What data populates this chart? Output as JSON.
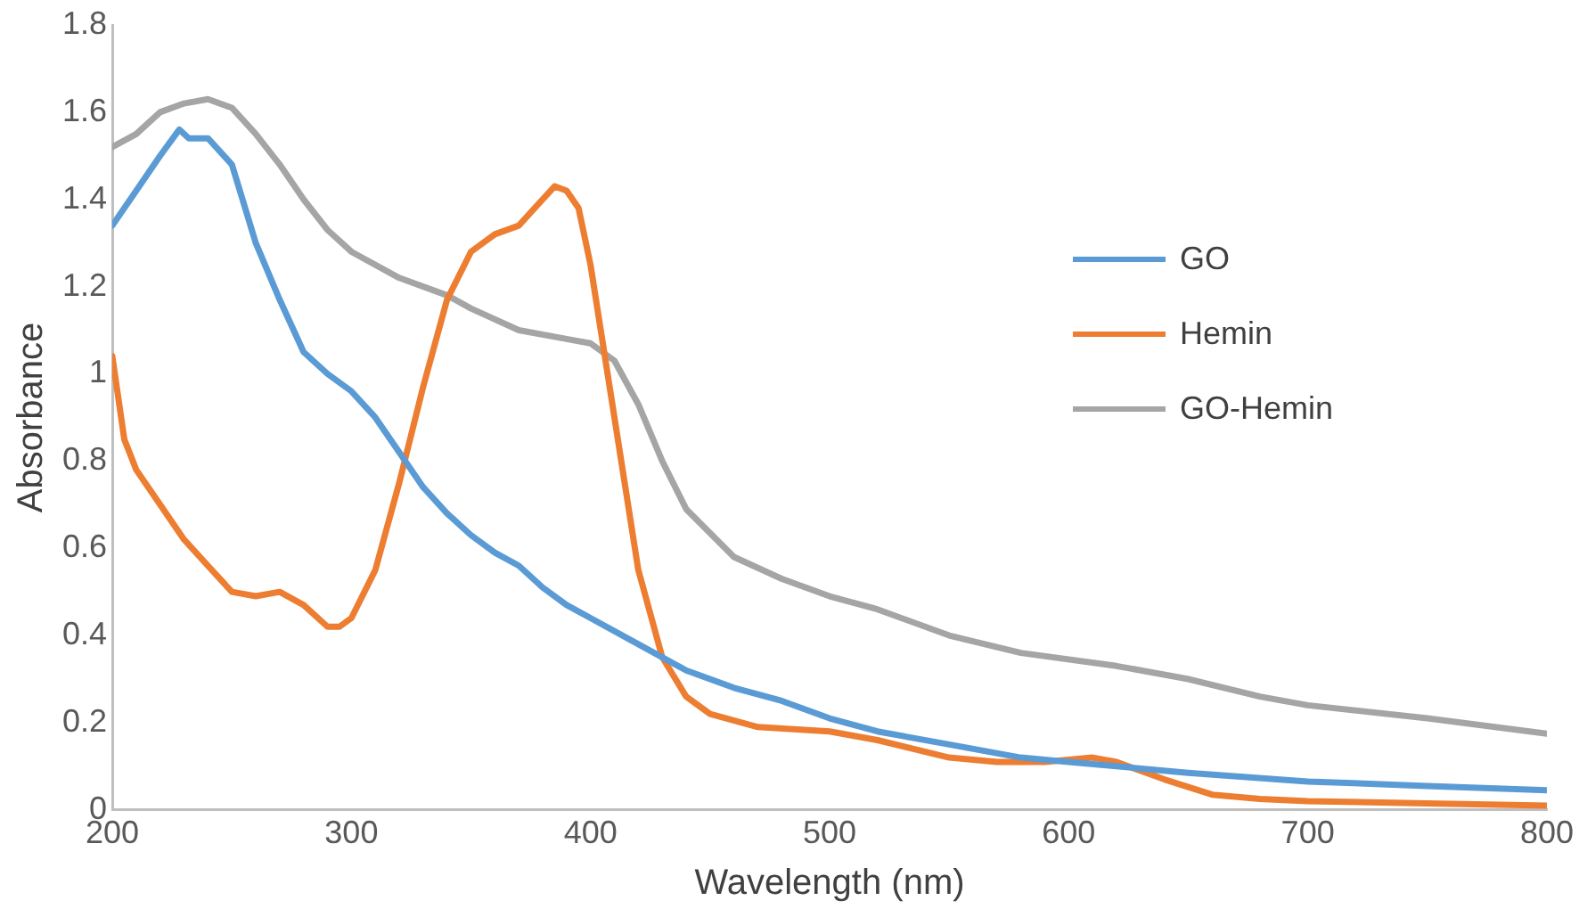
{
  "chart_data": {
    "type": "line",
    "xlabel": "Wavelength (nm)",
    "ylabel": "Absorbance",
    "xlim": [
      200,
      800
    ],
    "xticks": [
      200,
      300,
      400,
      500,
      600,
      700,
      800
    ],
    "ylim": [
      0,
      1.8
    ],
    "yticks": [
      0,
      0.2,
      0.4,
      0.6,
      0.8,
      1,
      1.2,
      1.4,
      1.6,
      1.8
    ],
    "grid": false,
    "legend": "right",
    "marker": "none",
    "line_style": "solid",
    "series": [
      {
        "name": "GO",
        "color": "#5b9bd5",
        "x": [
          200,
          210,
          220,
          228,
          232,
          240,
          250,
          260,
          270,
          280,
          290,
          300,
          310,
          320,
          330,
          340,
          350,
          360,
          370,
          380,
          390,
          400,
          420,
          440,
          460,
          480,
          500,
          520,
          550,
          580,
          600,
          650,
          700,
          750,
          800
        ],
        "values": [
          1.34,
          1.42,
          1.5,
          1.56,
          1.54,
          1.54,
          1.48,
          1.3,
          1.17,
          1.05,
          1.0,
          0.96,
          0.9,
          0.82,
          0.74,
          0.68,
          0.63,
          0.59,
          0.56,
          0.51,
          0.47,
          0.44,
          0.38,
          0.32,
          0.28,
          0.25,
          0.21,
          0.18,
          0.15,
          0.12,
          0.11,
          0.085,
          0.065,
          0.055,
          0.045
        ]
      },
      {
        "name": "Hemin",
        "color": "#ed7d31",
        "x": [
          200,
          205,
          210,
          220,
          230,
          240,
          250,
          260,
          270,
          280,
          290,
          295,
          300,
          310,
          320,
          330,
          340,
          350,
          360,
          370,
          380,
          385,
          390,
          395,
          400,
          410,
          420,
          430,
          440,
          450,
          470,
          500,
          520,
          550,
          570,
          590,
          610,
          620,
          640,
          660,
          680,
          700,
          750,
          800
        ],
        "values": [
          1.04,
          0.85,
          0.78,
          0.7,
          0.62,
          0.56,
          0.5,
          0.49,
          0.5,
          0.47,
          0.42,
          0.42,
          0.44,
          0.55,
          0.75,
          0.97,
          1.17,
          1.28,
          1.32,
          1.34,
          1.4,
          1.43,
          1.42,
          1.38,
          1.25,
          0.9,
          0.55,
          0.35,
          0.26,
          0.22,
          0.19,
          0.18,
          0.16,
          0.12,
          0.11,
          0.11,
          0.12,
          0.11,
          0.07,
          0.035,
          0.025,
          0.02,
          0.015,
          0.01
        ]
      },
      {
        "name": "GO-Hemin",
        "color": "#a5a5a5",
        "x": [
          200,
          210,
          220,
          230,
          240,
          250,
          260,
          270,
          280,
          290,
          300,
          320,
          340,
          350,
          370,
          390,
          400,
          410,
          420,
          430,
          440,
          460,
          480,
          500,
          520,
          550,
          580,
          620,
          650,
          680,
          700,
          750,
          800
        ],
        "values": [
          1.52,
          1.55,
          1.6,
          1.62,
          1.63,
          1.61,
          1.55,
          1.48,
          1.4,
          1.33,
          1.28,
          1.22,
          1.18,
          1.15,
          1.1,
          1.08,
          1.07,
          1.03,
          0.93,
          0.8,
          0.69,
          0.58,
          0.53,
          0.49,
          0.46,
          0.4,
          0.36,
          0.33,
          0.3,
          0.26,
          0.24,
          0.21,
          0.175
        ]
      }
    ]
  }
}
